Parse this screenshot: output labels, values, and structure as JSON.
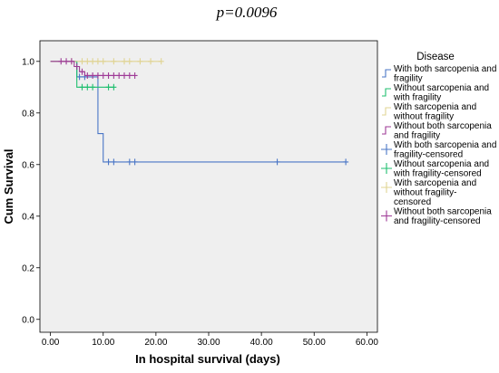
{
  "chart_data": {
    "type": "line",
    "annotation": "p=0.0096",
    "title": "",
    "xlabel": "In hospital survival (days)",
    "ylabel": "Cum Survival",
    "xlim": [
      -2,
      62
    ],
    "ylim": [
      -0.05,
      1.08
    ],
    "x_ticks": [
      "0.00",
      "10.00",
      "20.00",
      "30.00",
      "40.00",
      "50.00",
      "60.00"
    ],
    "x_tick_values": [
      0,
      10,
      20,
      30,
      40,
      50,
      60
    ],
    "y_ticks": [
      "0.0",
      "0.2",
      "0.4",
      "0.6",
      "0.8",
      "1.0"
    ],
    "y_tick_values": [
      0,
      0.2,
      0.4,
      0.6,
      0.8,
      1.0
    ],
    "grid": false,
    "background": "#efefef",
    "legend_position": "right",
    "legend_title": "Disease",
    "legend": [
      {
        "label": "With both sarcopenia and fragility",
        "lines": [
          "With both sarcopenia and",
          "fragility"
        ],
        "color": "#4a76c6",
        "marker": "step"
      },
      {
        "label": "Without sarcopenia and with fragility",
        "lines": [
          "Without sarcopenia and",
          "with fragility"
        ],
        "color": "#1fbf6f",
        "marker": "step"
      },
      {
        "label": "With sarcopenia and without fragility",
        "lines": [
          "With sarcopenia and",
          "without fragility"
        ],
        "color": "#e0d493",
        "marker": "step"
      },
      {
        "label": "Without both sarcopenia and fragility",
        "lines": [
          "Without both sarcopenia",
          "and fragility"
        ],
        "color": "#9e3a96",
        "marker": "step"
      },
      {
        "label": "With both sarcopenia and fragility-censored",
        "lines": [
          "With both sarcopenia and",
          "fragility-censored"
        ],
        "color": "#4a76c6",
        "marker": "censor"
      },
      {
        "label": "Without sarcopenia and with fragility-censored",
        "lines": [
          "Without sarcopenia and",
          "with fragility-censored"
        ],
        "color": "#1fbf6f",
        "marker": "censor"
      },
      {
        "label": "With sarcopenia and without fragility-censored",
        "lines": [
          "With sarcopenia and",
          "without fragility-",
          "censored"
        ],
        "color": "#e0d493",
        "marker": "censor"
      },
      {
        "label": "Without both sarcopenia and fragility-censored",
        "lines": [
          "Without both sarcopenia",
          "and fragility-censored"
        ],
        "color": "#9e3a96",
        "marker": "censor"
      }
    ],
    "series": [
      {
        "name": "With both sarcopenia and fragility",
        "color": "#4a76c6",
        "steps": [
          [
            0,
            1.0
          ],
          [
            5,
            0.94
          ],
          [
            9,
            0.72
          ],
          [
            10,
            0.61
          ],
          [
            56,
            0.61
          ]
        ],
        "censored": [
          [
            5.5,
            0.94
          ],
          [
            6.5,
            0.94
          ],
          [
            11,
            0.61
          ],
          [
            12,
            0.61
          ],
          [
            15,
            0.61
          ],
          [
            16,
            0.61
          ],
          [
            43,
            0.61
          ],
          [
            56,
            0.61
          ]
        ]
      },
      {
        "name": "Without sarcopenia and with fragility",
        "color": "#1fbf6f",
        "steps": [
          [
            0,
            1.0
          ],
          [
            5,
            0.9
          ],
          [
            12,
            0.9
          ]
        ],
        "censored": [
          [
            6,
            0.9
          ],
          [
            7,
            0.9
          ],
          [
            8,
            0.9
          ],
          [
            11,
            0.9
          ],
          [
            12,
            0.9
          ]
        ]
      },
      {
        "name": "With sarcopenia and without fragility",
        "color": "#e0d493",
        "steps": [
          [
            0,
            1.0
          ],
          [
            21,
            1.0
          ]
        ],
        "censored": [
          [
            4,
            1.0
          ],
          [
            6,
            1.0
          ],
          [
            7,
            1.0
          ],
          [
            8,
            1.0
          ],
          [
            9,
            1.0
          ],
          [
            10,
            1.0
          ],
          [
            12,
            1.0
          ],
          [
            14,
            1.0
          ],
          [
            15,
            1.0
          ],
          [
            17,
            1.0
          ],
          [
            19,
            1.0
          ],
          [
            21,
            1.0
          ]
        ]
      },
      {
        "name": "Without both sarcopenia and fragility",
        "color": "#9e3a96",
        "steps": [
          [
            0,
            1.0
          ],
          [
            4.5,
            0.98
          ],
          [
            5.5,
            0.96
          ],
          [
            6.5,
            0.945
          ],
          [
            16,
            0.945
          ]
        ],
        "censored": [
          [
            2,
            1.0
          ],
          [
            3,
            1.0
          ],
          [
            4,
            1.0
          ],
          [
            5,
            0.98
          ],
          [
            6,
            0.96
          ],
          [
            7,
            0.945
          ],
          [
            8,
            0.945
          ],
          [
            9,
            0.945
          ],
          [
            10,
            0.945
          ],
          [
            11,
            0.945
          ],
          [
            12,
            0.945
          ],
          [
            13,
            0.945
          ],
          [
            14,
            0.945
          ],
          [
            15,
            0.945
          ],
          [
            16,
            0.945
          ]
        ]
      }
    ]
  }
}
